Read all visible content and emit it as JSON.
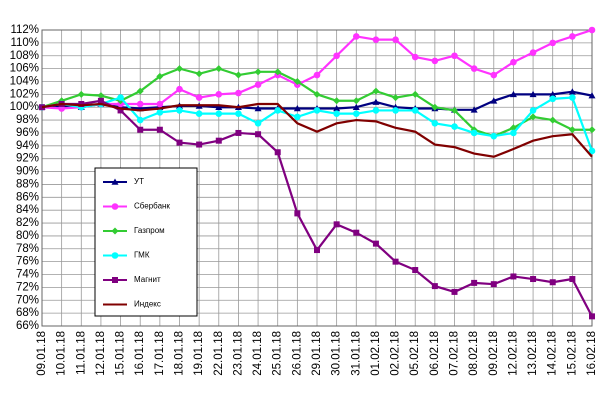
{
  "chart_data": {
    "type": "line",
    "categories": [
      "09.01.18",
      "10.01.18",
      "11.01.18",
      "12.01.18",
      "15.01.18",
      "16.01.18",
      "17.01.18",
      "18.01.18",
      "19.01.18",
      "22.01.18",
      "23.01.18",
      "24.01.18",
      "25.01.18",
      "26.01.18",
      "29.01.18",
      "30.01.18",
      "31.01.18",
      "01.02.18",
      "02.02.18",
      "05.02.18",
      "06.02.18",
      "07.02.18",
      "08.02.18",
      "09.02.18",
      "12.02.18",
      "13.02.18",
      "14.02.18",
      "15.02.18",
      "16.02.18"
    ],
    "series": [
      {
        "name": "УТ",
        "color": "#000080",
        "marker": "triangle",
        "values": [
          100,
          100.2,
          100,
          100.5,
          100,
          99.8,
          100,
          100.2,
          100.2,
          100,
          100,
          99.8,
          99.8,
          99.8,
          99.8,
          99.8,
          100,
          100.8,
          100,
          99.8,
          99.8,
          99.6,
          99.6,
          101,
          102,
          102,
          102,
          102.4,
          101.8
        ]
      },
      {
        "name": "Сбербанк",
        "color": "#ff33ff",
        "marker": "circle",
        "values": [
          100,
          99.8,
          100,
          100.5,
          100.5,
          100.5,
          100.5,
          102.8,
          101.5,
          102,
          102.2,
          103.5,
          105,
          103.5,
          105,
          108,
          111,
          110.5,
          110.5,
          107.8,
          107.2,
          108,
          106,
          105,
          107,
          108.5,
          110,
          111,
          112
        ]
      },
      {
        "name": "Газпром",
        "color": "#33cc33",
        "marker": "diamond",
        "values": [
          100,
          101,
          102,
          101.8,
          101,
          102.5,
          104.8,
          106,
          105.2,
          106,
          105,
          105.5,
          105.5,
          104,
          102,
          101,
          101,
          102.5,
          101.5,
          102,
          100,
          99.5,
          96.5,
          95.5,
          96.8,
          98.5,
          98,
          96.5,
          96.5
        ]
      },
      {
        "name": "ГМК",
        "color": "#00ffff",
        "marker": "circle",
        "values": [
          100,
          100.5,
          100,
          100.5,
          101.5,
          98,
          99.2,
          99.5,
          99,
          99,
          99,
          97.5,
          99.5,
          98.5,
          99.5,
          99,
          99,
          99.5,
          99.5,
          99.5,
          97.5,
          97,
          96,
          95.5,
          96,
          99.5,
          101.3,
          101.5,
          93.2
        ]
      },
      {
        "name": "Магнит",
        "color": "#800080",
        "marker": "square",
        "values": [
          100,
          100.5,
          100.5,
          101,
          99.5,
          96.5,
          96.5,
          94.5,
          94.2,
          94.8,
          96,
          95.8,
          93,
          83.5,
          77.8,
          81.8,
          80.5,
          78.8,
          76,
          74.7,
          72.2,
          71.3,
          72.7,
          72.5,
          73.7,
          73.3,
          72.8,
          73.3,
          67.5
        ]
      },
      {
        "name": "Индекс",
        "color": "#800000",
        "marker": "none",
        "values": [
          100,
          100.5,
          100.3,
          100.5,
          99.8,
          99.5,
          99.8,
          100.3,
          100.3,
          100.3,
          100,
          100.5,
          100.5,
          97.5,
          96.2,
          97.5,
          98,
          97.8,
          96.8,
          96.2,
          94.2,
          93.8,
          92.8,
          92.3,
          93.5,
          94.8,
          95.5,
          95.8,
          92.3
        ]
      }
    ],
    "ylim": [
      66,
      112
    ],
    "yticks": [
      {
        "value": 66,
        "label": "66%"
      },
      {
        "value": 68,
        "label": "68%"
      },
      {
        "value": 70,
        "label": "70%"
      },
      {
        "value": 72,
        "label": "72%"
      },
      {
        "value": 74,
        "label": "74%"
      },
      {
        "value": 76,
        "label": "76%"
      },
      {
        "value": 78,
        "label": "78%"
      },
      {
        "value": 80,
        "label": "80%"
      },
      {
        "value": 82,
        "label": "82%"
      },
      {
        "value": 84,
        "label": "84%"
      },
      {
        "value": 86,
        "label": "86%"
      },
      {
        "value": 88,
        "label": "88%"
      },
      {
        "value": 90,
        "label": "90%"
      },
      {
        "value": 92,
        "label": "92%"
      },
      {
        "value": 94,
        "label": "94%"
      },
      {
        "value": 96,
        "label": "96%"
      },
      {
        "value": 98,
        "label": "98%"
      },
      {
        "value": 100,
        "label": "100%"
      },
      {
        "value": 102,
        "label": "102%"
      },
      {
        "value": 104,
        "label": "104%"
      },
      {
        "value": 106,
        "label": "106%"
      },
      {
        "value": 108,
        "label": "108%"
      },
      {
        "value": 110,
        "label": "110%"
      },
      {
        "value": 112,
        "label": "112%"
      }
    ],
    "grid": true
  }
}
